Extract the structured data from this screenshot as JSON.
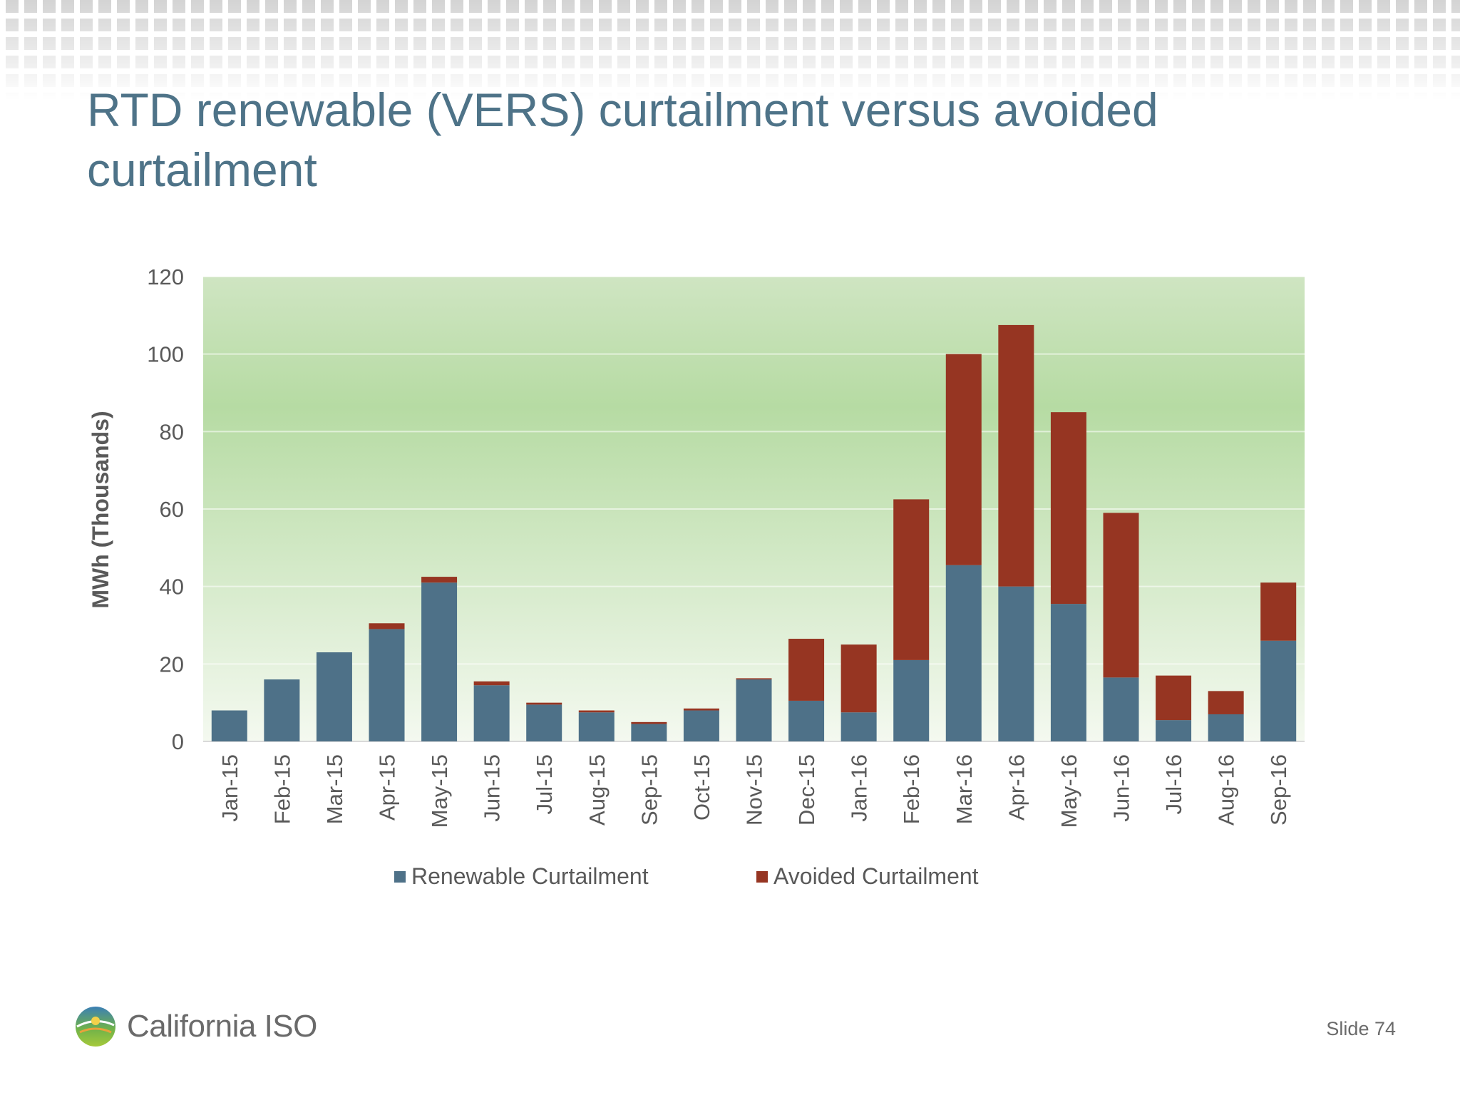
{
  "slide": {
    "title": "RTD renewable (VERS) curtailment versus avoided curtailment",
    "number_label": "Slide 74",
    "logo_text": "California ISO"
  },
  "colors": {
    "title": "#4e7388",
    "renewable": "#4e7188",
    "avoided": "#963522",
    "plot_bg_top": "#cfe5c2",
    "plot_bg_mid": "#b6dba3",
    "plot_bg_bottom": "#f4f9f0"
  },
  "chart_data": {
    "type": "bar",
    "stacked": true,
    "title": "",
    "xlabel": "",
    "ylabel": "MWh (Thousands)",
    "ylim": [
      0,
      120
    ],
    "yticks": [
      0,
      20,
      40,
      60,
      80,
      100,
      120
    ],
    "grid": true,
    "legend_position": "bottom",
    "categories": [
      "Jan-15",
      "Feb-15",
      "Mar-15",
      "Apr-15",
      "May-15",
      "Jun-15",
      "Jul-15",
      "Aug-15",
      "Sep-15",
      "Oct-15",
      "Nov-15",
      "Dec-15",
      "Jan-16",
      "Feb-16",
      "Mar-16",
      "Apr-16",
      "May-16",
      "Jun-16",
      "Jul-16",
      "Aug-16",
      "Sep-16"
    ],
    "series": [
      {
        "name": "Renewable Curtailment",
        "color": "#4e7188",
        "values": [
          8,
          16,
          23,
          29,
          41,
          14.5,
          9.5,
          7.5,
          4.5,
          8,
          16,
          10.5,
          7.5,
          21,
          45.5,
          40,
          35.5,
          16.5,
          5.5,
          7,
          26
        ]
      },
      {
        "name": "Avoided Curtailment",
        "color": "#963522",
        "values": [
          0,
          0,
          0,
          1.5,
          1.5,
          1,
          0.5,
          0.5,
          0.5,
          0.5,
          0.3,
          16,
          17.5,
          41.5,
          54.5,
          67.5,
          49.5,
          42.5,
          11.5,
          6,
          15
        ]
      }
    ]
  }
}
